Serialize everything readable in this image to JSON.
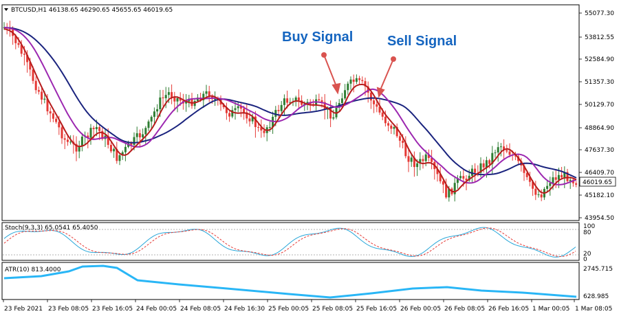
{
  "main": {
    "symbol_line": "BTCUSD,H1  46138.65 46290.65 45655.65 46019.65",
    "price_ticks": [
      "55077.30",
      "53812.55",
      "52584.90",
      "51357.30",
      "50129.70",
      "48864.90",
      "47637.30",
      "46409.70",
      "45182.10",
      "43954.50"
    ],
    "last_price": "46019.65",
    "annotations": {
      "buy": "Buy Signal",
      "sell": "Sell Signal"
    },
    "colors": {
      "bull": "#2e7d32",
      "bear": "#e53935",
      "ma_fast": "#b71c1c",
      "ma_mid": "#9c27b0",
      "ma_slow": "#1a237e",
      "arrow": "#d9534f"
    }
  },
  "stoch": {
    "label": "Stoch(9,3,3) 65.0541 65.4050",
    "levels": [
      "100",
      "80",
      "20",
      "0"
    ],
    "colors": {
      "main": "#26a6d9",
      "signal": "#e53935"
    }
  },
  "atr": {
    "label": "ATR(10) 813.4000",
    "ticks": [
      "2745.715",
      "628.985"
    ],
    "color": "#29b6f6"
  },
  "time_axis": [
    "23 Feb 2021",
    "23 Feb 08:05",
    "23 Feb 16:05",
    "24 Feb 00:05",
    "24 Feb 08:05",
    "24 Feb 16:30",
    "25 Feb 00:05",
    "25 Feb 08:05",
    "25 Feb 16:05",
    "26 Feb 00:05",
    "26 Feb 08:05",
    "26 Feb 16:05",
    "1 Mar 00:05",
    "1 Mar 08:05"
  ]
}
